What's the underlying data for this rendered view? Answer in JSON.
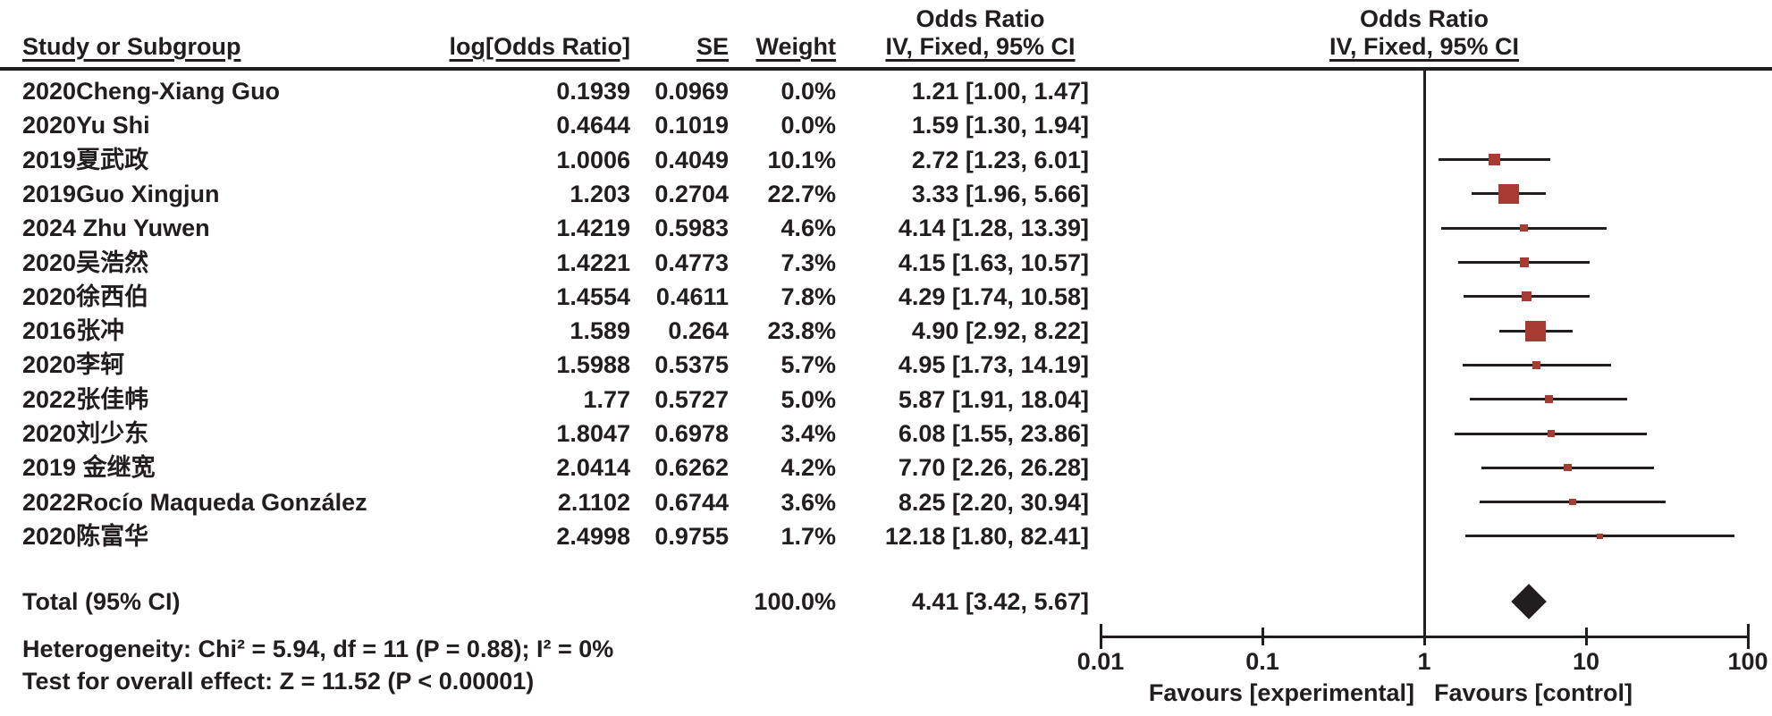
{
  "header": {
    "or_title_text_col": "Odds Ratio",
    "or_title_plot_col": "Odds Ratio",
    "study": "Study or Subgroup",
    "log_or": "log[Odds Ratio]",
    "se": "SE",
    "weight": "Weight",
    "ci_method_text_col": "IV, Fixed, 95% CI",
    "ci_method_plot_col": "IV, Fixed, 95% CI"
  },
  "rows": [
    {
      "study": "2020Cheng-Xiang Guo",
      "log_or": "0.1939",
      "se": "0.0969",
      "weight": "0.0%",
      "or_ci": "1.21 [1.00, 1.47]"
    },
    {
      "study": "2020Yu Shi",
      "log_or": "0.4644",
      "se": "0.1019",
      "weight": "0.0%",
      "or_ci": "1.59 [1.30, 1.94]"
    },
    {
      "study": "2019夏武政",
      "log_or": "1.0006",
      "se": "0.4049",
      "weight": "10.1%",
      "or_ci": "2.72 [1.23, 6.01]"
    },
    {
      "study": "2019Guo Xingjun",
      "log_or": "1.203",
      "se": "0.2704",
      "weight": "22.7%",
      "or_ci": "3.33 [1.96, 5.66]"
    },
    {
      "study": "2024 Zhu Yuwen",
      "log_or": "1.4219",
      "se": "0.5983",
      "weight": "4.6%",
      "or_ci": "4.14 [1.28, 13.39]"
    },
    {
      "study": "2020吴浩然",
      "log_or": "1.4221",
      "se": "0.4773",
      "weight": "7.3%",
      "or_ci": "4.15 [1.63, 10.57]"
    },
    {
      "study": "2020徐西伯",
      "log_or": "1.4554",
      "se": "0.4611",
      "weight": "7.8%",
      "or_ci": "4.29 [1.74, 10.58]"
    },
    {
      "study": "2016张冲",
      "log_or": "1.589",
      "se": "0.264",
      "weight": "23.8%",
      "or_ci": "4.90 [2.92, 8.22]"
    },
    {
      "study": "2020李轲",
      "log_or": "1.5988",
      "se": "0.5375",
      "weight": "5.7%",
      "or_ci": "4.95 [1.73, 14.19]"
    },
    {
      "study": "2022张佳帏",
      "log_or": "1.77",
      "se": "0.5727",
      "weight": "5.0%",
      "or_ci": "5.87 [1.91, 18.04]"
    },
    {
      "study": "2020刘少东",
      "log_or": "1.8047",
      "se": "0.6978",
      "weight": "3.4%",
      "or_ci": "6.08 [1.55, 23.86]"
    },
    {
      "study": "2019 金继宽",
      "log_or": "2.0414",
      "se": "0.6262",
      "weight": "4.2%",
      "or_ci": "7.70 [2.26, 26.28]"
    },
    {
      "study": "2022Rocío Maqueda González",
      "log_or": "2.1102",
      "se": "0.6744",
      "weight": "3.6%",
      "or_ci": "8.25 [2.20, 30.94]"
    },
    {
      "study": "2020陈富华",
      "log_or": "2.4998",
      "se": "0.9755",
      "weight": "1.7%",
      "or_ci": "12.18 [1.80, 82.41]"
    }
  ],
  "total": {
    "label": "Total (95% CI)",
    "weight": "100.0%",
    "or_ci": "4.41 [3.42, 5.67]"
  },
  "footer": {
    "heterogeneity": "Heterogeneity: Chi² = 5.94, df = 11 (P = 0.88); I² = 0%",
    "overall_effect": "Test for overall effect: Z = 11.52 (P < 0.00001)"
  },
  "axis": {
    "tick_labels": [
      "0.01",
      "0.1",
      "1",
      "10",
      "100"
    ],
    "favours_left": "Favours [experimental]",
    "favours_right": "Favours [control]"
  },
  "colors": {
    "marker_red": "#a73a31",
    "line_black": "#221d1e"
  },
  "chart_data": {
    "type": "scatter",
    "subtype": "forest-plot",
    "effect_measure": "Odds Ratio",
    "model": "IV, Fixed, 95% CI",
    "x_scale": "log10",
    "xlim": [
      0.01,
      100
    ],
    "x_ticks": [
      0.01,
      0.1,
      1,
      10,
      100
    ],
    "null_line": 1,
    "studies": [
      {
        "name": "2020Cheng-Xiang Guo",
        "log_or": 0.1939,
        "se": 0.0969,
        "weight_pct": 0.0,
        "or": 1.21,
        "ci_low": 1.0,
        "ci_high": 1.47,
        "plotted": false
      },
      {
        "name": "2020Yu Shi",
        "log_or": 0.4644,
        "se": 0.1019,
        "weight_pct": 0.0,
        "or": 1.59,
        "ci_low": 1.3,
        "ci_high": 1.94,
        "plotted": false
      },
      {
        "name": "2019夏武政",
        "log_or": 1.0006,
        "se": 0.4049,
        "weight_pct": 10.1,
        "or": 2.72,
        "ci_low": 1.23,
        "ci_high": 6.01,
        "plotted": true
      },
      {
        "name": "2019Guo Xingjun",
        "log_or": 1.203,
        "se": 0.2704,
        "weight_pct": 22.7,
        "or": 3.33,
        "ci_low": 1.96,
        "ci_high": 5.66,
        "plotted": true
      },
      {
        "name": "2024 Zhu Yuwen",
        "log_or": 1.4219,
        "se": 0.5983,
        "weight_pct": 4.6,
        "or": 4.14,
        "ci_low": 1.28,
        "ci_high": 13.39,
        "plotted": true
      },
      {
        "name": "2020吴浩然",
        "log_or": 1.4221,
        "se": 0.4773,
        "weight_pct": 7.3,
        "or": 4.15,
        "ci_low": 1.63,
        "ci_high": 10.57,
        "plotted": true
      },
      {
        "name": "2020徐西伯",
        "log_or": 1.4554,
        "se": 0.4611,
        "weight_pct": 7.8,
        "or": 4.29,
        "ci_low": 1.74,
        "ci_high": 10.58,
        "plotted": true
      },
      {
        "name": "2016张冲",
        "log_or": 1.589,
        "se": 0.264,
        "weight_pct": 23.8,
        "or": 4.9,
        "ci_low": 2.92,
        "ci_high": 8.22,
        "plotted": true
      },
      {
        "name": "2020李轲",
        "log_or": 1.5988,
        "se": 0.5375,
        "weight_pct": 5.7,
        "or": 4.95,
        "ci_low": 1.73,
        "ci_high": 14.19,
        "plotted": true
      },
      {
        "name": "2022张佳帏",
        "log_or": 1.77,
        "se": 0.5727,
        "weight_pct": 5.0,
        "or": 5.87,
        "ci_low": 1.91,
        "ci_high": 18.04,
        "plotted": true
      },
      {
        "name": "2020刘少东",
        "log_or": 1.8047,
        "se": 0.6978,
        "weight_pct": 3.4,
        "or": 6.08,
        "ci_low": 1.55,
        "ci_high": 23.86,
        "plotted": true
      },
      {
        "name": "2019 金继宽",
        "log_or": 2.0414,
        "se": 0.6262,
        "weight_pct": 4.2,
        "or": 7.7,
        "ci_low": 2.26,
        "ci_high": 26.28,
        "plotted": true
      },
      {
        "name": "2022Rocío Maqueda González",
        "log_or": 2.1102,
        "se": 0.6744,
        "weight_pct": 3.6,
        "or": 8.25,
        "ci_low": 2.2,
        "ci_high": 30.94,
        "plotted": true
      },
      {
        "name": "2020陈富华",
        "log_or": 2.4998,
        "se": 0.9755,
        "weight_pct": 1.7,
        "or": 12.18,
        "ci_low": 1.8,
        "ci_high": 82.41,
        "plotted": true
      }
    ],
    "pooled": {
      "name": "Total (95% CI)",
      "or": 4.41,
      "ci_low": 3.42,
      "ci_high": 5.67,
      "weight_pct": 100.0
    },
    "heterogeneity": {
      "chi2": 5.94,
      "df": 11,
      "p": 0.88,
      "i2_pct": 0
    },
    "overall_effect": {
      "z": 11.52,
      "p": "< 0.00001"
    },
    "favours": [
      "Favours [experimental]",
      "Favours [control]"
    ]
  }
}
